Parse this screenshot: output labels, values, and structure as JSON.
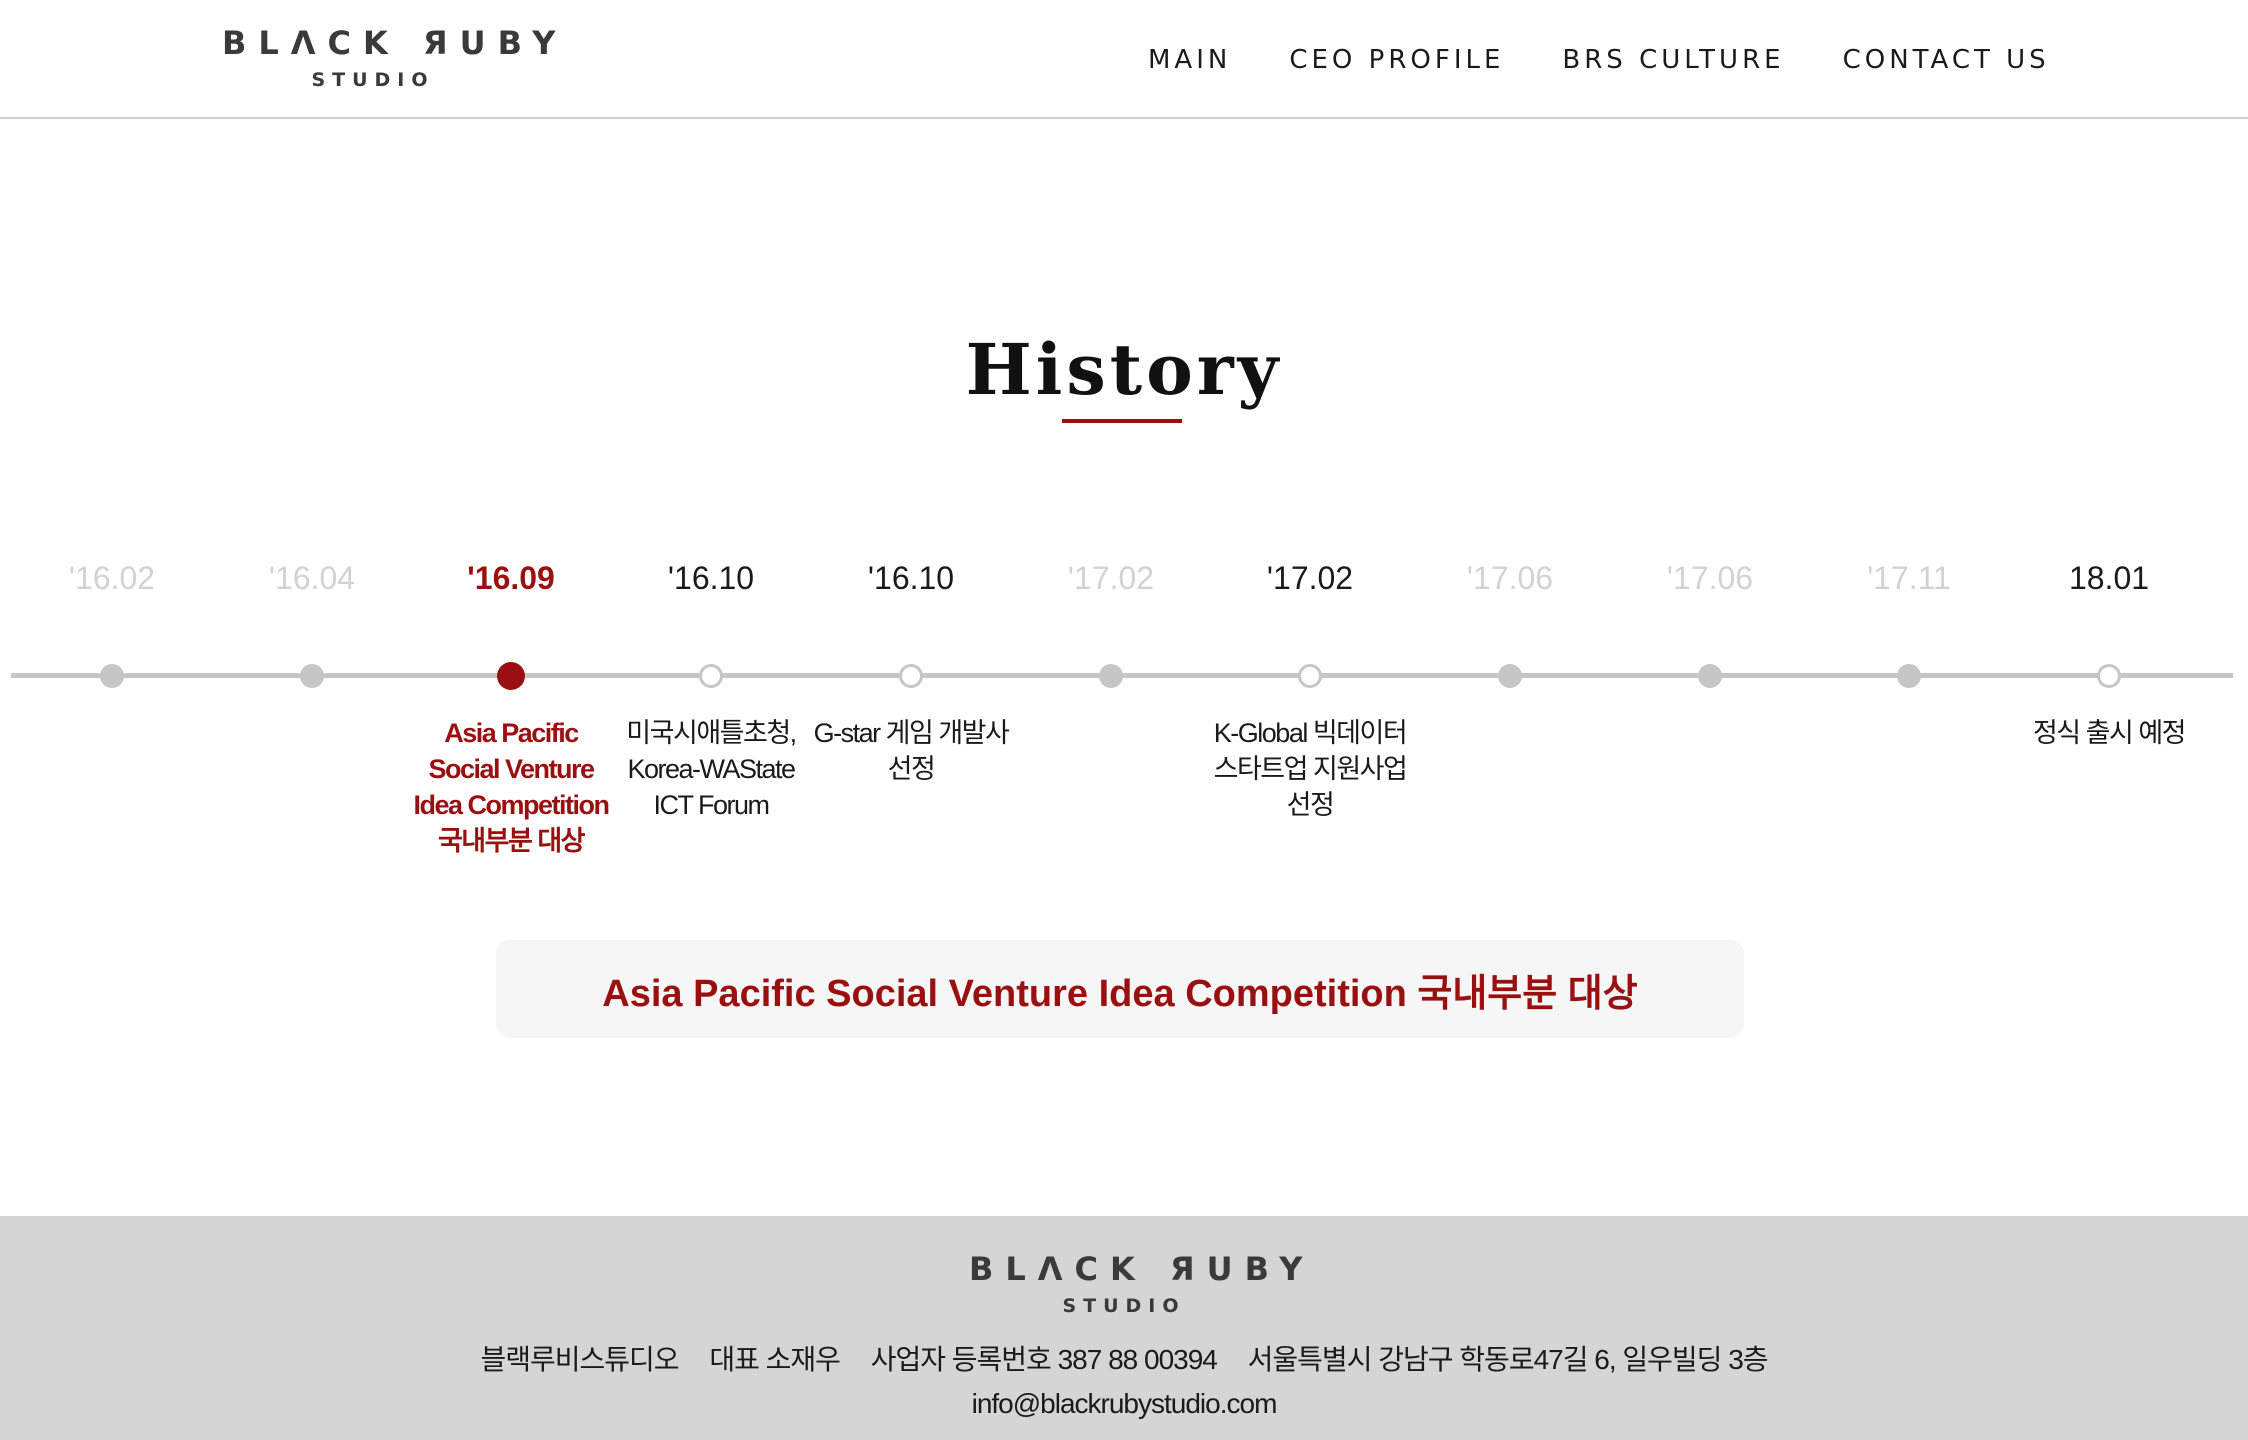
{
  "header": {
    "logo_main": "BLΛCK ЯUBY",
    "logo_sub": "STUDIO",
    "nav": [
      "MAIN",
      "CEO PROFILE",
      "BRS CULTURE",
      "CONTACT US"
    ]
  },
  "page_title": "History",
  "timeline": {
    "items": [
      {
        "date": "'16.02",
        "state": "faded",
        "dot": "filled",
        "label": []
      },
      {
        "date": "'16.04",
        "state": "faded",
        "dot": "filled",
        "label": []
      },
      {
        "date": "'16.09",
        "state": "active",
        "dot": "active",
        "label": [
          "Asia Pacific",
          "Social Venture",
          "Idea Competition",
          "국내부분 대상"
        ]
      },
      {
        "date": "'16.10",
        "state": "normal",
        "dot": "hollow",
        "label": [
          "미국시애틀초청,",
          "Korea-WAState",
          "ICT Forum"
        ]
      },
      {
        "date": "'16.10",
        "state": "normal",
        "dot": "hollow",
        "label": [
          "G-star 게임 개발사",
          "선정"
        ]
      },
      {
        "date": "'17.02",
        "state": "faded",
        "dot": "filled",
        "label": []
      },
      {
        "date": "'17.02",
        "state": "normal",
        "dot": "hollow",
        "label": [
          "K-Global 빅데이터",
          "스타트업 지원사업",
          "선정"
        ]
      },
      {
        "date": "'17.06",
        "state": "faded",
        "dot": "filled",
        "label": []
      },
      {
        "date": "'17.06",
        "state": "faded",
        "dot": "filled",
        "label": []
      },
      {
        "date": "'17.11",
        "state": "faded",
        "dot": "filled",
        "label": []
      },
      {
        "date": "18.01",
        "state": "normal",
        "dot": "hollow",
        "label": [
          "정식 출시 예정"
        ]
      }
    ]
  },
  "detail": {
    "text": "Asia Pacific Social Venture Idea Competition 국내부분 대상"
  },
  "footer": {
    "logo_main": "BLΛCK ЯUBY",
    "logo_sub": "STUDIO",
    "company": "블랙루비스튜디오",
    "ceo": "대표 소재우",
    "business_number": "사업자 등록번호 387 88 00394",
    "address": "서울특별시 강남구 학동로47길 6, 일우빌딩 3층",
    "email": "info@blackrubystudio.com"
  },
  "colors": {
    "accent": "#9a1010",
    "timeline_gray": "#c6c6c6",
    "faded_text": "#d2d2d2",
    "footer_bg": "#d5d5d5"
  }
}
